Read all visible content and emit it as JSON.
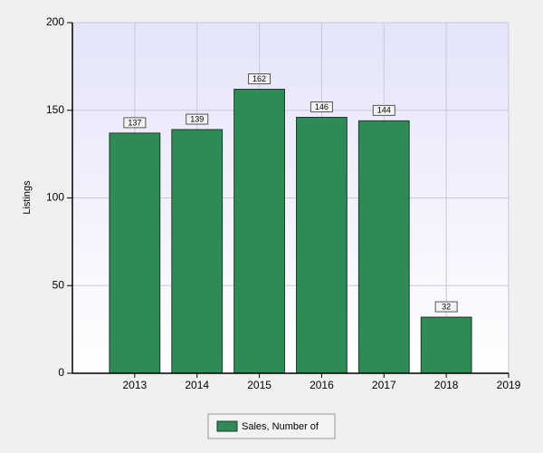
{
  "chart_data": {
    "type": "bar",
    "y_label": "Listings",
    "x": [
      2013,
      2014,
      2015,
      2016,
      2017,
      2018
    ],
    "series": [
      {
        "name": "Sales, Number of",
        "color": "#2e8b57",
        "values": [
          137,
          139,
          162,
          146,
          144,
          32
        ]
      }
    ],
    "xlim": [
      2012,
      2019
    ],
    "xticks": [
      2013,
      2014,
      2015,
      2016,
      2017,
      2018,
      2019
    ],
    "ylim": [
      0,
      200
    ],
    "yticks": [
      0,
      50,
      100,
      150,
      200
    ],
    "grid": true,
    "legend": "bottom"
  }
}
